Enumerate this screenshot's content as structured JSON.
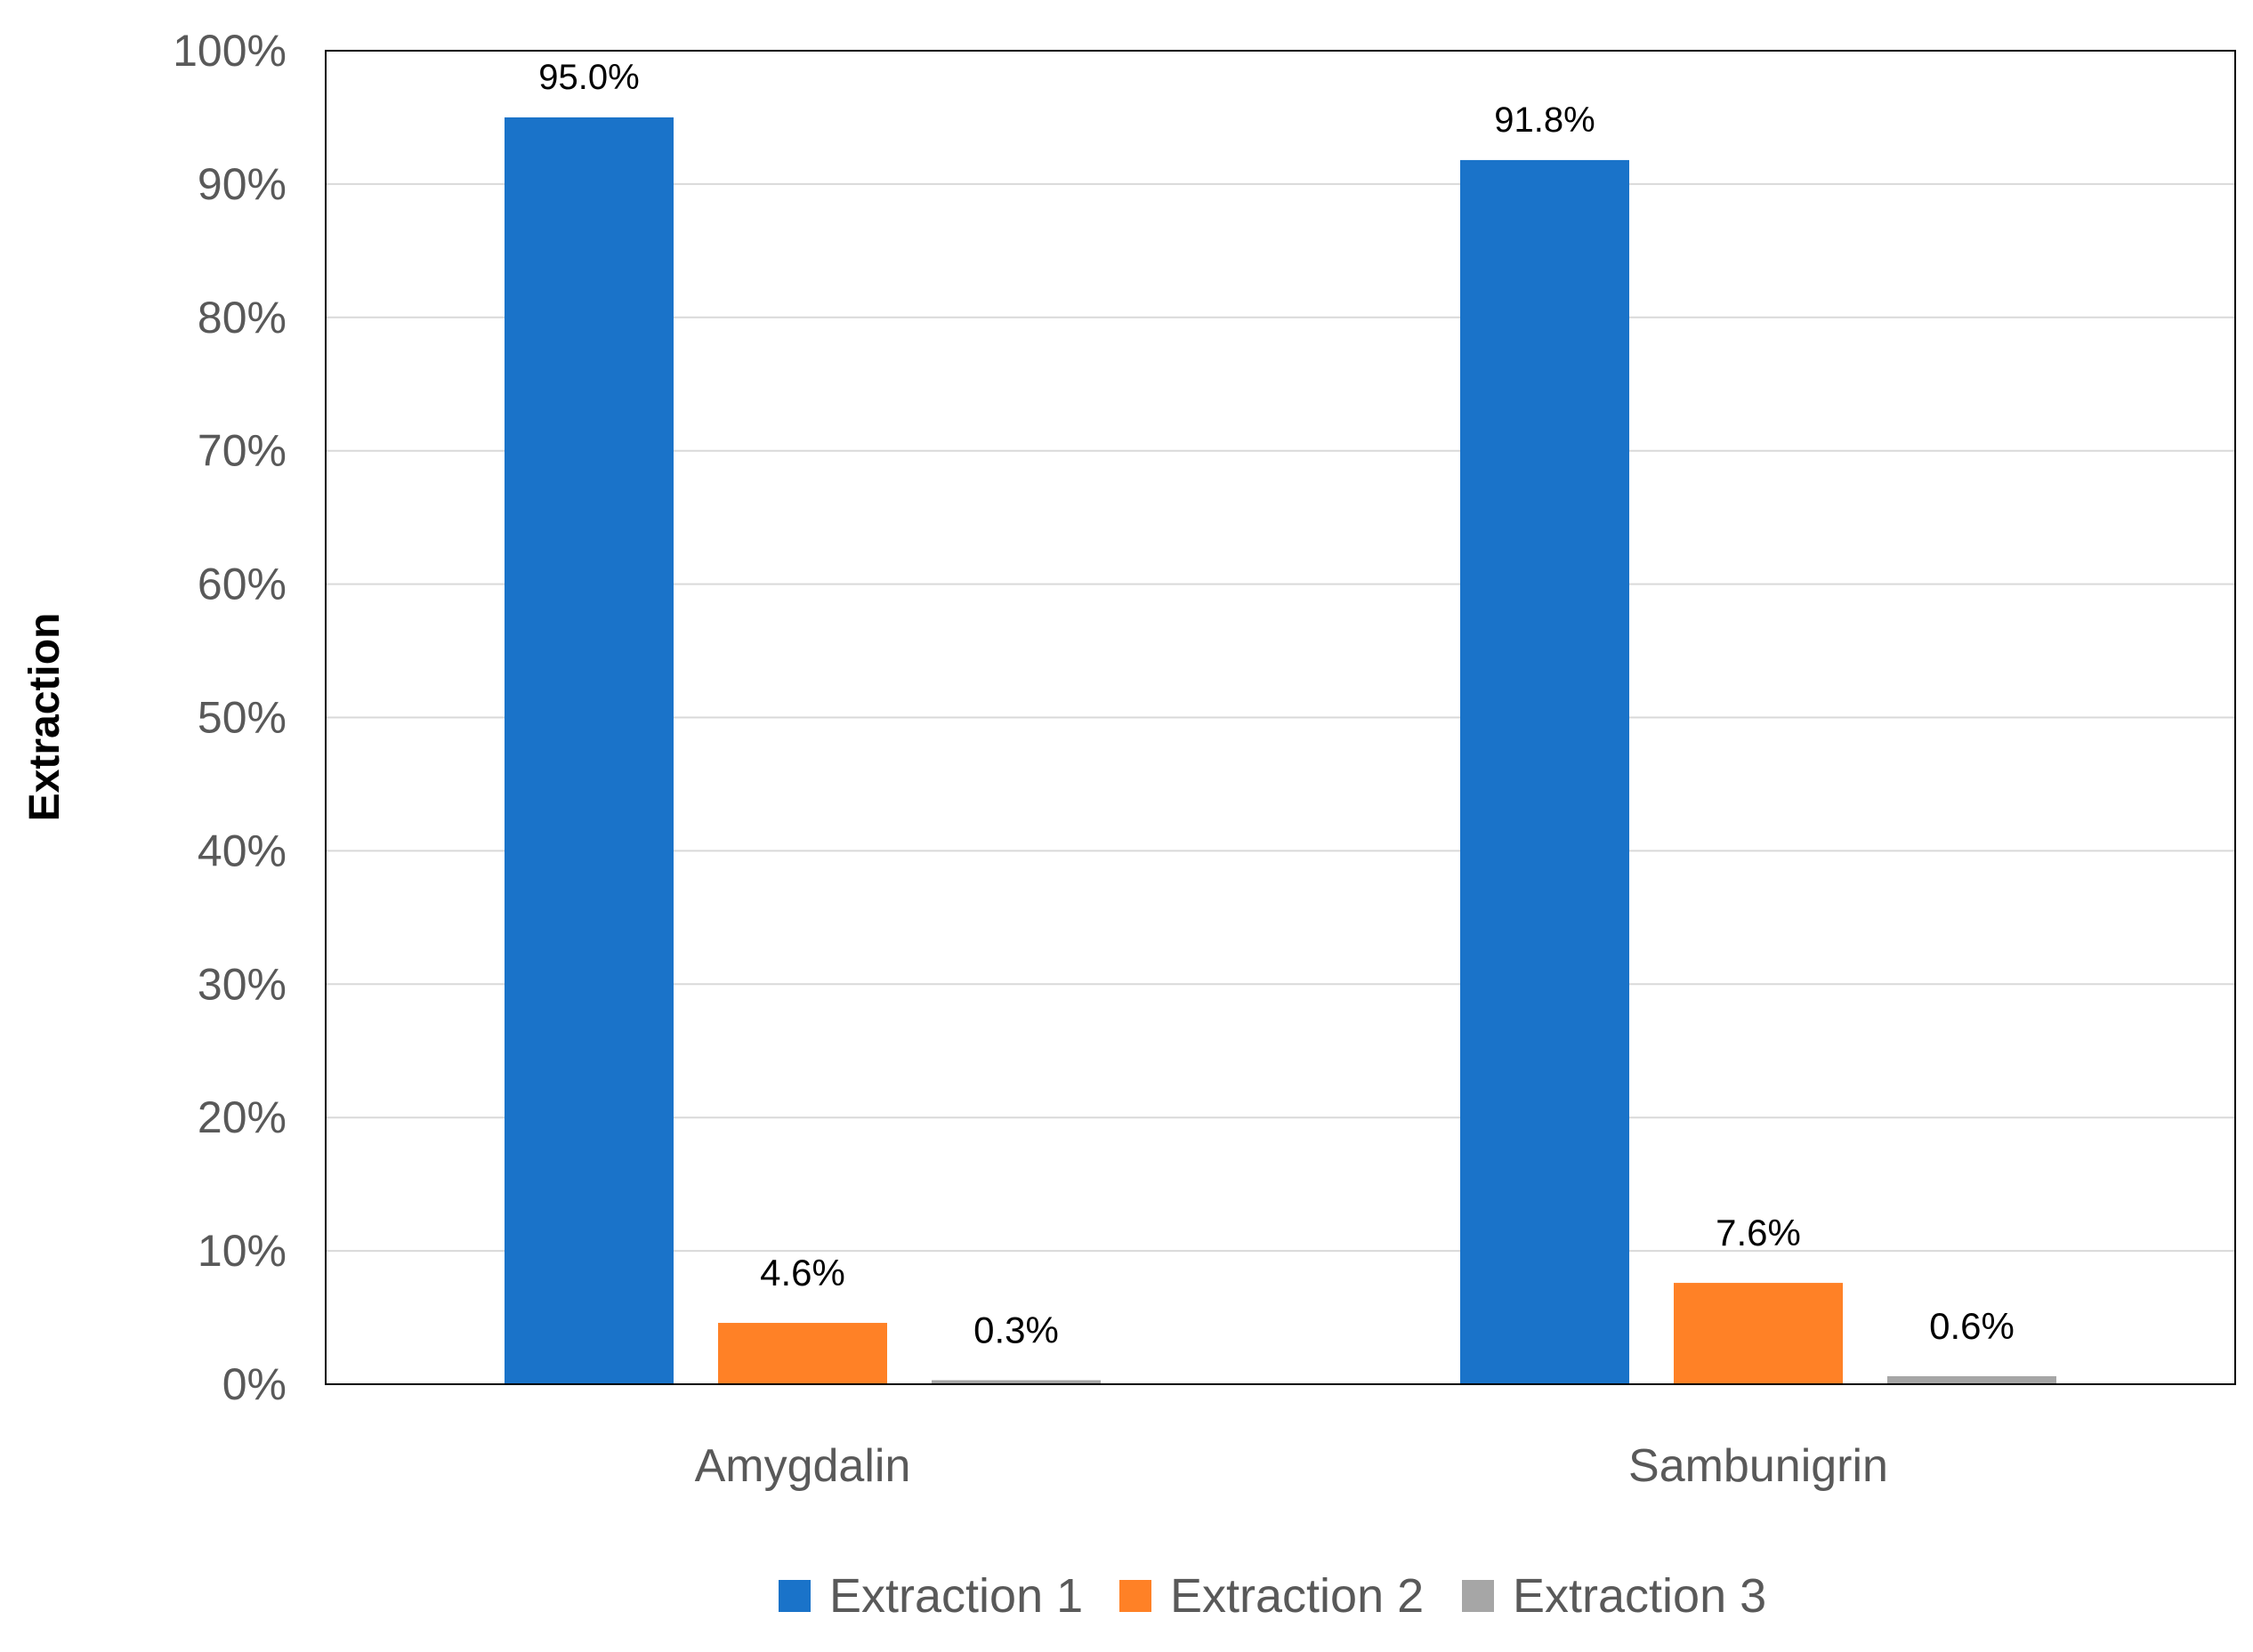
{
  "chart_data": {
    "type": "bar",
    "title": "",
    "xlabel": "",
    "ylabel": "Extraction",
    "ylim": [
      0,
      100
    ],
    "y_ticks": [
      "0%",
      "10%",
      "20%",
      "30%",
      "40%",
      "50%",
      "60%",
      "70%",
      "80%",
      "90%",
      "100%"
    ],
    "categories": [
      "Amygdalin",
      "Sambunigrin"
    ],
    "series": [
      {
        "name": "Extraction 1",
        "color": "#1a73c9",
        "values": [
          95.0,
          91.8
        ],
        "labels": [
          "95.0%",
          "91.8%"
        ]
      },
      {
        "name": "Extraction 2",
        "color": "#ff8126",
        "values": [
          4.6,
          7.6
        ],
        "labels": [
          "4.6%",
          "7.6%"
        ]
      },
      {
        "name": "Extraction 3",
        "color": "#a6a6a6",
        "values": [
          0.3,
          0.6
        ],
        "labels": [
          "0.3%",
          "0.6%"
        ]
      }
    ],
    "grid": true,
    "legend_position": "bottom"
  }
}
